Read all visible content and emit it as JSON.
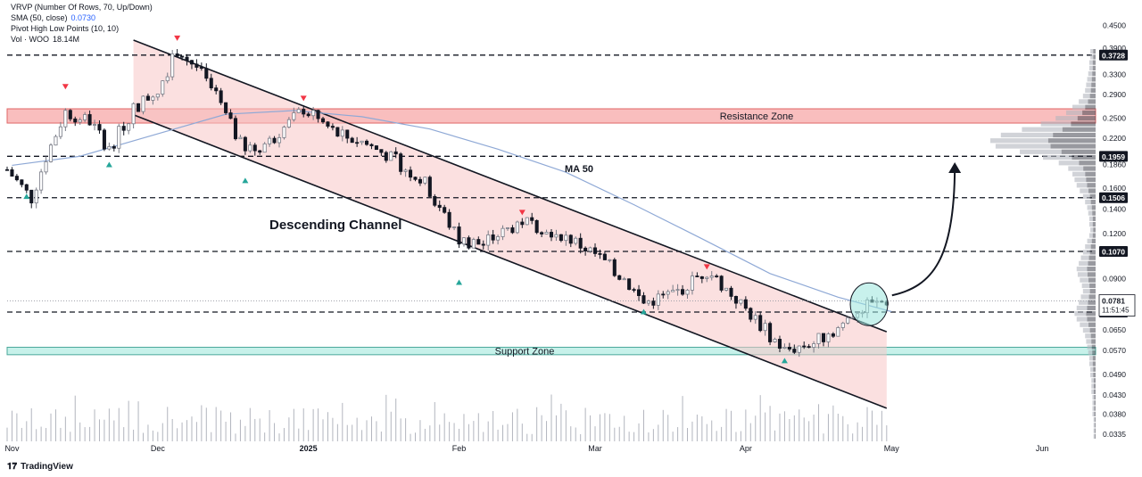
{
  "legend": {
    "vrvp": "VRVP (Number Of Rows, 70, Up/Down)",
    "sma_label": "SMA (50, close)",
    "sma_value": "0.0730",
    "pivot": "Pivot High Low Points (10, 10)",
    "vol_label": "Vol · WOO",
    "vol_value": "18.14M"
  },
  "brand": "TradingView",
  "colors": {
    "up": "#787b86",
    "down": "#131722",
    "channel": "#f7c6c6",
    "resistance": "#f7a8a8",
    "support": "#bdeee6",
    "sma": "#8fa9d6",
    "pivot_high": "#f23645",
    "pivot_low": "#26a69a"
  },
  "chart_data": {
    "type": "candlestick",
    "y_axis": {
      "scale": "log",
      "range": [
        0.032,
        0.5
      ],
      "ticks": [
        "0.4500",
        "0.3900",
        "0.3300",
        "0.2900",
        "0.2500",
        "0.2200",
        "0.1860",
        "0.1600",
        "0.1400",
        "0.1200",
        "0.0900",
        "0.0650",
        "0.0570",
        "0.0490",
        "0.0430",
        "0.0380",
        "0.0335"
      ]
    },
    "x_axis": {
      "labels": [
        {
          "label": "Nov",
          "date": "2024-11-01"
        },
        {
          "label": "Dec",
          "date": "2024-12-01"
        },
        {
          "label": "2025",
          "date": "2025-01-01"
        },
        {
          "label": "Feb",
          "date": "2025-02-01"
        },
        {
          "label": "Mar",
          "date": "2025-03-01"
        },
        {
          "label": "Apr",
          "date": "2025-04-01"
        },
        {
          "label": "May",
          "date": "2025-05-01"
        },
        {
          "label": "Jun",
          "date": "2025-06-01"
        }
      ],
      "range": [
        "2024-10-31",
        "2025-06-12"
      ]
    },
    "price_levels": [
      "0.3728",
      "0.1959",
      "0.1506",
      "0.1070",
      "0.0728"
    ],
    "current_price": {
      "value": "0.0781",
      "countdown": "11:51:45"
    },
    "zones": [
      {
        "label": "Resistance Zone",
        "range": [
          0.242,
          0.265
        ]
      },
      {
        "label": "Support Zone",
        "range": [
          0.0555,
          0.0582
        ]
      }
    ],
    "annotations": [
      {
        "text": "Descending Channel"
      },
      {
        "text": "MA 50"
      }
    ],
    "channel": {
      "upper": [
        [
          "2024-11-26",
          0.41
        ],
        [
          "2025-04-30",
          0.0642
        ]
      ],
      "lower": [
        [
          "2024-11-26",
          0.255
        ],
        [
          "2025-04-30",
          0.0395
        ]
      ]
    },
    "target_arrow": {
      "from": [
        "2025-04-30",
        0.0765
      ],
      "to": [
        "2025-05-03",
        0.193
      ]
    },
    "sma_50": [
      [
        "2024-11-01",
        0.185
      ],
      [
        "2024-11-15",
        0.196
      ],
      [
        "2024-12-01",
        0.226
      ],
      [
        "2024-12-15",
        0.256
      ],
      [
        "2024-12-29",
        0.262
      ],
      [
        "2025-01-12",
        0.252
      ],
      [
        "2025-01-26",
        0.233
      ],
      [
        "2025-02-09",
        0.205
      ],
      [
        "2025-02-23",
        0.177
      ],
      [
        "2025-03-09",
        0.144
      ],
      [
        "2025-03-23",
        0.116
      ],
      [
        "2025-04-06",
        0.093
      ],
      [
        "2025-04-20",
        0.08
      ],
      [
        "2025-05-01",
        0.073
      ]
    ],
    "pivots_high": [
      [
        "2024-11-12",
        0.305
      ],
      [
        "2024-12-05",
        0.415
      ],
      [
        "2024-12-31",
        0.283
      ],
      [
        "2025-02-14",
        0.137
      ],
      [
        "2025-03-24",
        0.097
      ]
    ],
    "pivots_low": [
      [
        "2024-11-04",
        0.152
      ],
      [
        "2024-11-21",
        0.186
      ],
      [
        "2024-12-19",
        0.168
      ],
      [
        "2025-02-01",
        0.088
      ],
      [
        "2025-03-11",
        0.073
      ],
      [
        "2025-04-09",
        0.0535
      ]
    ],
    "volume_profile_bins": [
      0.05,
      0.05,
      0.06,
      0.06,
      0.07,
      0.08,
      0.09,
      0.1,
      0.12,
      0.16,
      0.22,
      0.28,
      0.38,
      0.52,
      0.7,
      0.9,
      1.0,
      0.95,
      0.72,
      0.5,
      0.35,
      0.26,
      0.22,
      0.2,
      0.18,
      0.15,
      0.12,
      0.1,
      0.08,
      0.07,
      0.06,
      0.06,
      0.05,
      0.06,
      0.08,
      0.1,
      0.12,
      0.14,
      0.16,
      0.18,
      0.17,
      0.15,
      0.13,
      0.12,
      0.14,
      0.16,
      0.18,
      0.2,
      0.18,
      0.15,
      0.12,
      0.1,
      0.09,
      0.08,
      0.07,
      0.06,
      0.06,
      0.05,
      0.05,
      0.04,
      0.04,
      0.04,
      0.03,
      0.03,
      0.03,
      0.03,
      0.02,
      0.02,
      0.02,
      0.02
    ]
  }
}
